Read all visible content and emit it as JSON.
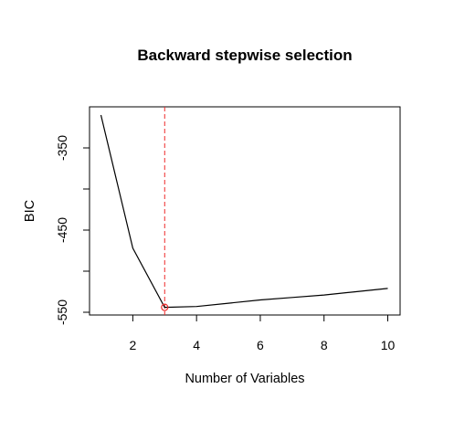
{
  "chart_data": {
    "type": "line",
    "title": "Backward stepwise selection",
    "xlabel": "Number of Variables",
    "ylabel": "BIC",
    "x": [
      1,
      2,
      3,
      4,
      5,
      6,
      7,
      8,
      9,
      10
    ],
    "series": [
      {
        "values": [
          -310,
          -472,
          -544,
          -543,
          -539,
          -535,
          -532,
          -529,
          -525,
          -521
        ]
      }
    ],
    "xlim": [
      1,
      10
    ],
    "ylim": [
      -550,
      -310
    ],
    "xticks": [
      2,
      4,
      6,
      8,
      10
    ],
    "xtick_labels": [
      "2",
      "4",
      "6",
      "8",
      "10"
    ],
    "yticks": [
      -550,
      -500,
      -450,
      -400,
      -350
    ],
    "ytick_labels": [
      "-550",
      "",
      "-450",
      "",
      "-350"
    ],
    "highlight": {
      "x": 3,
      "y": -544,
      "marker": "open-circle",
      "vline": "dashed"
    },
    "line_color": "#000000",
    "highlight_color": "#ee2a2a",
    "grid": false,
    "legend": "none"
  }
}
